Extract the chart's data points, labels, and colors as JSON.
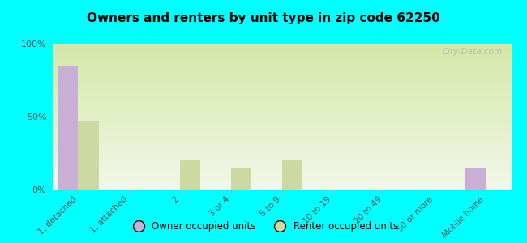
{
  "title": "Owners and renters by unit type in zip code 62250",
  "categories": [
    "1, detached",
    "1, attached",
    "2",
    "3 or 4",
    "5 to 9",
    "10 to 19",
    "20 to 49",
    "50 or more",
    "Mobile home"
  ],
  "owner_values": [
    85,
    0,
    0,
    0,
    0,
    0,
    0,
    0,
    15
  ],
  "renter_values": [
    47,
    0,
    20,
    15,
    20,
    0,
    0,
    0,
    0
  ],
  "owner_color": "#c9aed6",
  "renter_color": "#ccd9a0",
  "background_color": "#00ffff",
  "grad_top": "#d4e8a8",
  "grad_bottom": "#f2f7e8",
  "ylim": [
    0,
    100
  ],
  "yticks": [
    0,
    50,
    100
  ],
  "ytick_labels": [
    "0%",
    "50%",
    "100%"
  ],
  "bar_width": 0.4,
  "legend_owner": "Owner occupied units",
  "legend_renter": "Renter occupied units",
  "watermark": "City-Data.com"
}
